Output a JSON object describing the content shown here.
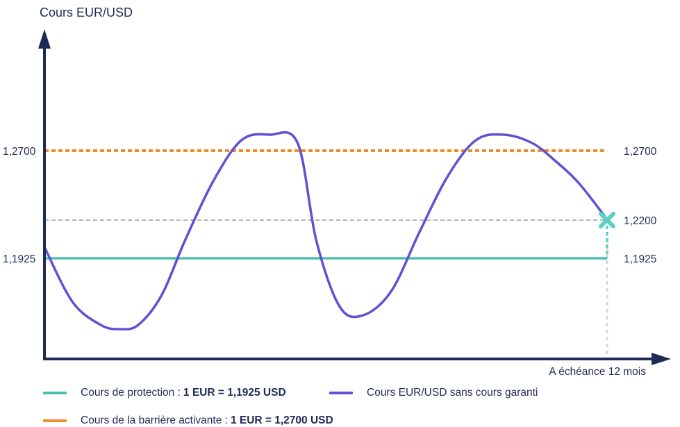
{
  "chart_data": {
    "type": "line",
    "title": "",
    "ylabel": "Cours EUR/USD",
    "xlabel": "A échéance 12 mois",
    "ylim": [
      1.07,
      1.36
    ],
    "xlim": [
      0,
      12
    ],
    "y_ticks_left": [
      "1,2700",
      "1,1925"
    ],
    "y_ticks_right": [
      "1,2700",
      "1,2200",
      "1,1925"
    ],
    "y_tick_values_left": [
      1.27,
      1.1925
    ],
    "y_tick_values_right": [
      1.27,
      1.22,
      1.1925
    ],
    "colors": {
      "axis": "#1f2a55",
      "protection": "#4cbfb4",
      "barrier": "#f28c28",
      "spot": "#5b53d4",
      "reference": "#8a8a8a",
      "final_marker": "#5ecfc2",
      "maturity_line": "#d6d6d6"
    },
    "series": [
      {
        "name": "Cours EUR/USD sans cours garanti",
        "style": "curve",
        "x": [
          0,
          0.6,
          1.2,
          1.6,
          2.0,
          2.5,
          3.0,
          3.6,
          4.2,
          4.8,
          5.4,
          5.8,
          6.3,
          6.8,
          7.4,
          8.0,
          8.6,
          9.2,
          9.8,
          10.4,
          10.9,
          11.4,
          12.0
        ],
        "values": [
          1.2005,
          1.161,
          1.1445,
          1.1415,
          1.1445,
          1.166,
          1.2055,
          1.248,
          1.2775,
          1.2815,
          1.2755,
          1.205,
          1.1575,
          1.1515,
          1.169,
          1.2115,
          1.2515,
          1.2775,
          1.2815,
          1.2755,
          1.2625,
          1.2465,
          1.2205
        ]
      },
      {
        "name": "Cours de protection",
        "style": "solid",
        "x": [
          0,
          12
        ],
        "values": [
          1.1925,
          1.1925
        ]
      },
      {
        "name": "Cours de la barrière activante",
        "style": "dotted",
        "x": [
          0,
          12
        ],
        "values": [
          1.27,
          1.27
        ]
      }
    ],
    "reference_line": {
      "style": "dashed",
      "value": 1.22
    },
    "final_point": {
      "x": 12,
      "value": 1.22,
      "marker": "x"
    },
    "legend": {
      "placement": "bottom",
      "items": [
        {
          "key": "protection",
          "prefix": "Cours de protection :",
          "value": "1 EUR = 1,1925 USD"
        },
        {
          "key": "spot",
          "prefix": "Cours EUR/USD sans cours garanti",
          "value": ""
        },
        {
          "key": "barrier",
          "prefix": "Cours de la barrière activante  :",
          "value": "1 EUR = 1,2700 USD"
        }
      ]
    }
  }
}
